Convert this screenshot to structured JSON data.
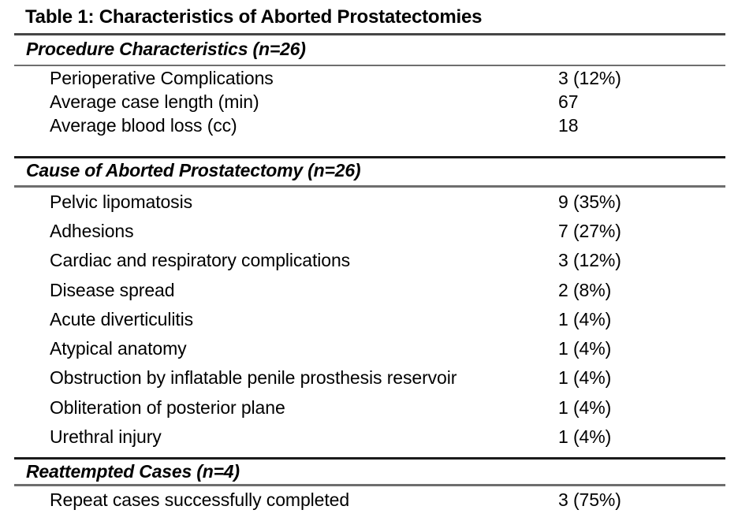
{
  "table": {
    "title": "Table 1: Characteristics of Aborted Prostatectomies",
    "sections": [
      {
        "heading": "Procedure Characteristics (n=26)",
        "rows": [
          {
            "label": "Perioperative Complications",
            "value": "3 (12%)"
          },
          {
            "label": "Average case length (min)",
            "value": "67"
          },
          {
            "label": "Average blood loss (cc)",
            "value": "18"
          }
        ]
      },
      {
        "heading": "Cause of Aborted Prostatectomy (n=26)",
        "rows": [
          {
            "label": "Pelvic lipomatosis",
            "value": "9 (35%)"
          },
          {
            "label": "Adhesions",
            "value": "7 (27%)"
          },
          {
            "label": "Cardiac and respiratory complications",
            "value": "3 (12%)"
          },
          {
            "label": "Disease spread",
            "value": "2 (8%)"
          },
          {
            "label": "Acute diverticulitis",
            "value": "1 (4%)"
          },
          {
            "label": "Atypical anatomy",
            "value": "1 (4%)"
          },
          {
            "label": "Obstruction by inflatable penile prosthesis reservoir",
            "value": "1 (4%)"
          },
          {
            "label": "Obliteration of posterior plane",
            "value": "1 (4%)"
          },
          {
            "label": "Urethral injury",
            "value": "1 (4%)"
          }
        ]
      },
      {
        "heading": "Reattempted Cases (n=4)",
        "rows": [
          {
            "label": "Repeat cases successfully completed",
            "value": "3 (75%)"
          }
        ]
      }
    ]
  },
  "colors": {
    "background": "#ffffff",
    "text": "#000000",
    "rule_dark": "#1a1a1a",
    "rule_gray": "#6e6e6e"
  }
}
